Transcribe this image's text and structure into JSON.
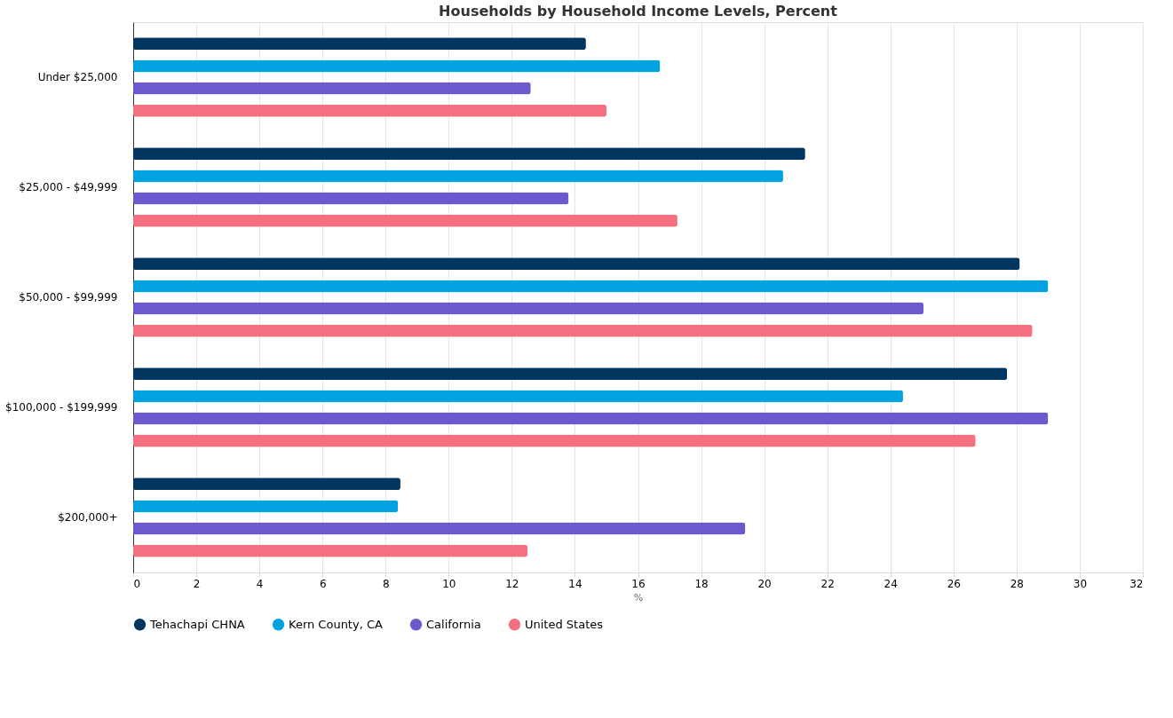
{
  "chart_data": {
    "type": "bar",
    "orientation": "horizontal",
    "title": "Households by Household Income Levels, Percent",
    "xlabel": "%",
    "categories": [
      "Under $25,000",
      "$25,000 - $49,999",
      "$50,000 - $99,999",
      "$100,000 - $199,999",
      "$200,000+"
    ],
    "series": [
      {
        "name": "Tehachapi CHNA",
        "color": "#00365f",
        "values": [
          14.35,
          21.3,
          28.1,
          27.7,
          8.47
        ]
      },
      {
        "name": "Kern County, CA",
        "color": "#00a3e0",
        "values": [
          16.7,
          20.6,
          29.0,
          24.4,
          8.39
        ]
      },
      {
        "name": "California",
        "color": "#6a5acd",
        "values": [
          12.6,
          13.8,
          25.05,
          29.0,
          19.4
        ]
      },
      {
        "name": "United States",
        "color": "#f47080",
        "values": [
          15.0,
          17.25,
          28.5,
          26.7,
          12.5
        ]
      }
    ],
    "xlim": [
      0,
      32
    ],
    "xticks": [
      0,
      2,
      4,
      6,
      8,
      10,
      12,
      14,
      16,
      18,
      20,
      22,
      24,
      26,
      28,
      30,
      32
    ],
    "grid": "x",
    "legend": "bottom"
  }
}
